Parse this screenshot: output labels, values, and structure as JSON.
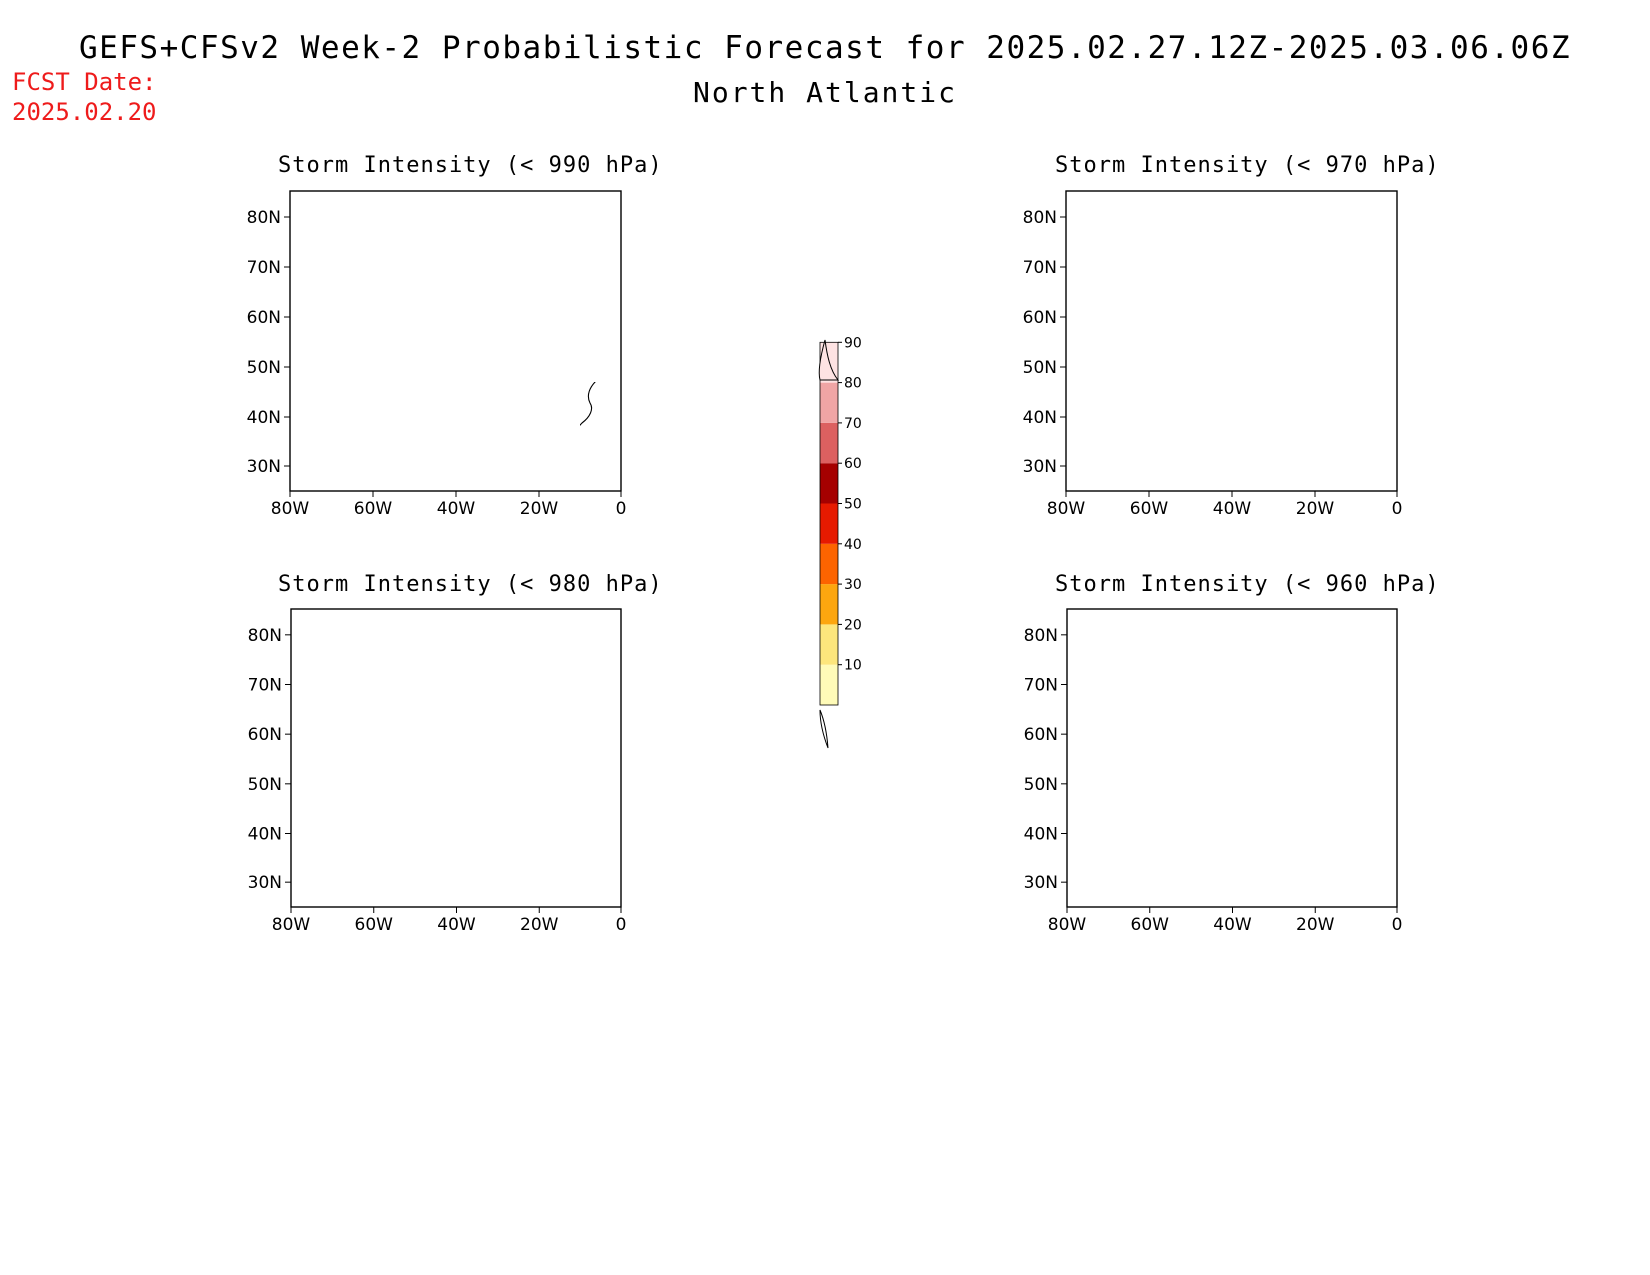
{
  "title": "GEFS+CFSv2 Week-2 Probabilistic Forecast for 2025.02.27.12Z-2025.03.06.06Z",
  "region": "North Atlantic",
  "fcst": {
    "label": "FCST Date:",
    "date": "2025.02.20"
  },
  "axes": {
    "lat_ticks": [
      "80N",
      "70N",
      "60N",
      "50N",
      "40N",
      "30N"
    ],
    "lon_ticks": [
      "80W",
      "60W",
      "40W",
      "20W",
      "0"
    ]
  },
  "colorbar": {
    "levels": [
      "10",
      "20",
      "30",
      "40",
      "50",
      "60",
      "70",
      "80",
      "90"
    ],
    "colors": [
      "#fffbb8",
      "#fde67c",
      "#fda60f",
      "#fd6400",
      "#e61a00",
      "#a50000",
      "#dc6060",
      "#f0a5a5",
      "#fee3e3"
    ]
  },
  "panels": [
    {
      "id": "p990",
      "title": "Storm Intensity (< 990 hPa)"
    },
    {
      "id": "p970",
      "title": "Storm Intensity (< 970 hPa)"
    },
    {
      "id": "p980",
      "title": "Storm Intensity (< 980 hPa)"
    },
    {
      "id": "p960",
      "title": "Storm Intensity (< 960 hPa)"
    }
  ]
}
